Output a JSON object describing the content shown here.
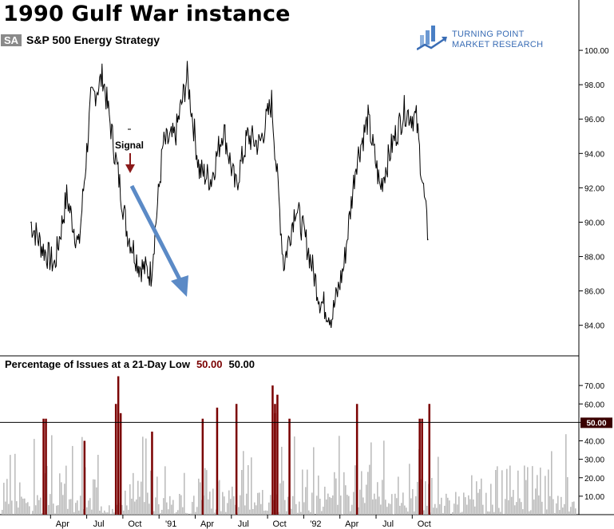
{
  "title": "1990 Gulf War instance",
  "badge": "SA",
  "series_name": "S&P 500 Energy  Strategy",
  "logo": {
    "line1": "TURNING POINT",
    "line2": "MARKET RESEARCH",
    "icon": "bar-chart-arrow-icon"
  },
  "annotation": {
    "signal_label": "Signal"
  },
  "colors": {
    "price": "#000000",
    "signal_arrow": "#8b1a1a",
    "trend_arrow": "#5b8ac6",
    "bar_gray": "#bdbdbd",
    "bar_red": "#7a0000",
    "threshold_line": "#000000",
    "threshold_badge_bg": "#3a0000",
    "logo": "#3a6db5"
  },
  "lower_panel": {
    "label": "Percentage of Issues at a 21-Day Low",
    "threshold_value_red": "50.00",
    "threshold_value_black": "50.00",
    "threshold_badge": "50.00"
  },
  "chart_data": [
    {
      "type": "line",
      "series": [
        {
          "name": "S&P 500 Energy  Strategy",
          "x": [
            "1990-03",
            "1990-04",
            "1990-05",
            "1990-06",
            "1990-07",
            "1990-08",
            "1990-09",
            "1990-10",
            "1990-11",
            "1990-12",
            "1991-01",
            "1991-02",
            "1991-03",
            "1991-04",
            "1991-05",
            "1991-06",
            "1991-07",
            "1991-08",
            "1991-09",
            "1991-10",
            "1991-11",
            "1991-12",
            "1992-01",
            "1992-02",
            "1992-03",
            "1992-04",
            "1992-05",
            "1992-06",
            "1992-07",
            "1992-08",
            "1992-09",
            "1992-10",
            "1992-11",
            "1992-12"
          ],
          "values": [
            90.0,
            88.5,
            87.5,
            91.5,
            88.5,
            97.0,
            98.5,
            94.0,
            89.5,
            87.5,
            87.0,
            94.5,
            95.0,
            98.5,
            93.0,
            92.5,
            95.5,
            92.0,
            95.0,
            94.5,
            97.0,
            87.5,
            91.0,
            88.5,
            85.5,
            84.5,
            87.5,
            93.5,
            96.0,
            92.0,
            94.5,
            96.5,
            96.0,
            89.0
          ]
        }
      ],
      "y_ticks": [
        "84.00",
        "86.00",
        "88.00",
        "90.00",
        "92.00",
        "94.00",
        "96.00",
        "98.00",
        "100.00"
      ],
      "ylim": [
        82.5,
        102.0
      ],
      "grid": false,
      "annotations": [
        "Signal"
      ]
    },
    {
      "type": "bar",
      "series": [
        {
          "name": "Percentage of Issues at a 21-Day Low",
          "x": [
            "1990-04",
            "1990-04",
            "1990-07",
            "1990-10",
            "1990-10",
            "1990-10",
            "1991-01",
            "1991-05",
            "1991-06",
            "1991-08",
            "1991-11",
            "1991-11",
            "1991-11",
            "1991-11",
            "1991-12",
            "1992-06",
            "1992-11",
            "1992-11",
            "1992-12"
          ],
          "values": [
            52,
            52,
            40,
            60,
            75,
            55,
            45,
            52,
            58,
            60,
            60,
            65,
            70,
            55,
            52,
            60,
            52,
            52,
            60
          ]
        }
      ],
      "threshold": 50,
      "y_ticks": [
        "10.00",
        "20.00",
        "30.00",
        "40.00",
        "50.00",
        "60.00",
        "70.00"
      ],
      "ylim": [
        0,
        80
      ],
      "grid": false
    }
  ],
  "x_axis": {
    "tick_labels": [
      "Apr",
      "Jul",
      "Oct",
      "'91",
      "Apr",
      "Jul",
      "Oct",
      "'92",
      "Apr",
      "Jul",
      "Oct"
    ]
  }
}
